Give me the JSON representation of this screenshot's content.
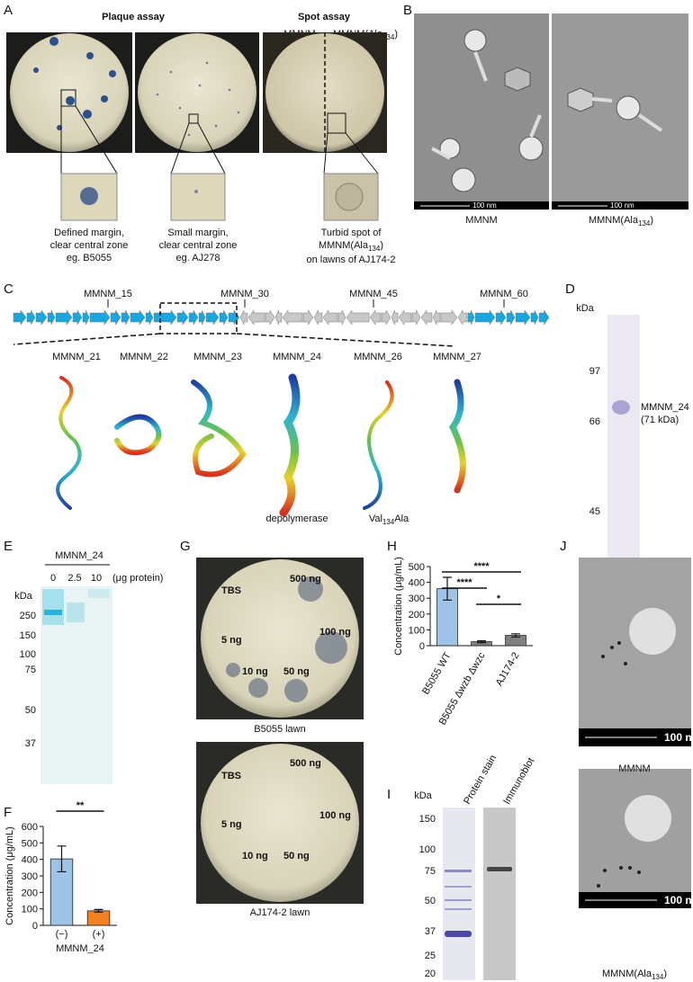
{
  "panels": {
    "A": {
      "label": "A",
      "plaque_title": "Plaque assay",
      "spot_title": "Spot assay",
      "spot_left": "MMNM",
      "spot_right": [
        "MMNM(Ala",
        "134",
        ")"
      ],
      "captions": [
        [
          "Defined margin,",
          "clear central zone",
          "eg. B5055"
        ],
        [
          "Small margin,",
          "clear central zone",
          "eg. AJ278"
        ],
        [
          "Turbid spot of",
          [
            "MMNM(Ala",
            "134",
            ")"
          ],
          "on lawns of AJ174-2"
        ]
      ]
    },
    "B": {
      "label": "B",
      "scale": "100 nm",
      "captions": [
        "MMNM",
        [
          "MMNM(Ala",
          "134",
          ")"
        ]
      ]
    },
    "C": {
      "label": "C",
      "genes": [
        "MMNM_15",
        "MMNM_30",
        "MMNM_45",
        "MMNM_60"
      ],
      "proteins": [
        "MMNM_21",
        "MMNM_22",
        "MMNM_23",
        "MMNM_24",
        "MMNM_26",
        "MMNM_27"
      ],
      "notes": [
        "depolymerase",
        [
          "Val",
          "134",
          "Ala"
        ]
      ]
    },
    "D": {
      "label": "D",
      "unit": "kDa",
      "markers": [
        97,
        66,
        45
      ],
      "band": [
        "MMNM_24",
        "(71 kDa)"
      ]
    },
    "E": {
      "label": "E",
      "protein": "MMNM_24",
      "lanes": [
        0,
        2.5,
        10
      ],
      "lane_unit": "(μg protein)",
      "unit": "kDa",
      "markers": [
        250,
        150,
        100,
        75,
        50,
        37
      ]
    },
    "F": {
      "label": "F"
    },
    "G": {
      "label": "G",
      "spots": [
        "TBS",
        "500 ng",
        "5 ng",
        "100 ng",
        "10 ng",
        "50 ng"
      ],
      "lawns": [
        "B5055 lawn",
        "AJ174-2 lawn"
      ]
    },
    "H": {
      "label": "H"
    },
    "I": {
      "label": "I",
      "unit": "kDa",
      "lanes": [
        "Protein stain",
        "Immunoblot"
      ],
      "markers": [
        150,
        100,
        75,
        50,
        37,
        25,
        20
      ]
    },
    "J": {
      "label": "J",
      "scale": "100 nm",
      "captions": [
        "MMNM",
        [
          "MMNM(Ala",
          "134",
          ")"
        ]
      ]
    }
  },
  "chart_data": [
    {
      "type": "bar",
      "y_label": "Concentration (μg/mL)",
      "categories": [
        "(−)",
        "(+)"
      ],
      "x_label": "MMNM_24",
      "values": [
        403,
        88
      ],
      "errors": [
        78,
        8
      ],
      "colors": [
        "#9dc3e6",
        "#f58220"
      ],
      "ylim": [
        0,
        600
      ],
      "yticks": [
        0,
        100,
        200,
        300,
        400,
        500,
        600
      ],
      "annotations": [
        "**"
      ]
    },
    {
      "type": "bar",
      "y_label": "Concentration (μg/mL)",
      "categories": [
        "B5055 WT",
        "B5055 Δwzb Δwzc",
        "AJ174-2"
      ],
      "values": [
        360,
        25,
        65
      ],
      "errors": [
        72,
        6,
        10
      ],
      "colors": [
        "#9dc3e6",
        "#808080",
        "#808080"
      ],
      "ylim": [
        0,
        500
      ],
      "yticks": [
        0,
        100,
        200,
        300,
        400,
        500
      ],
      "annotations": [
        "****",
        "****",
        "*"
      ]
    }
  ]
}
